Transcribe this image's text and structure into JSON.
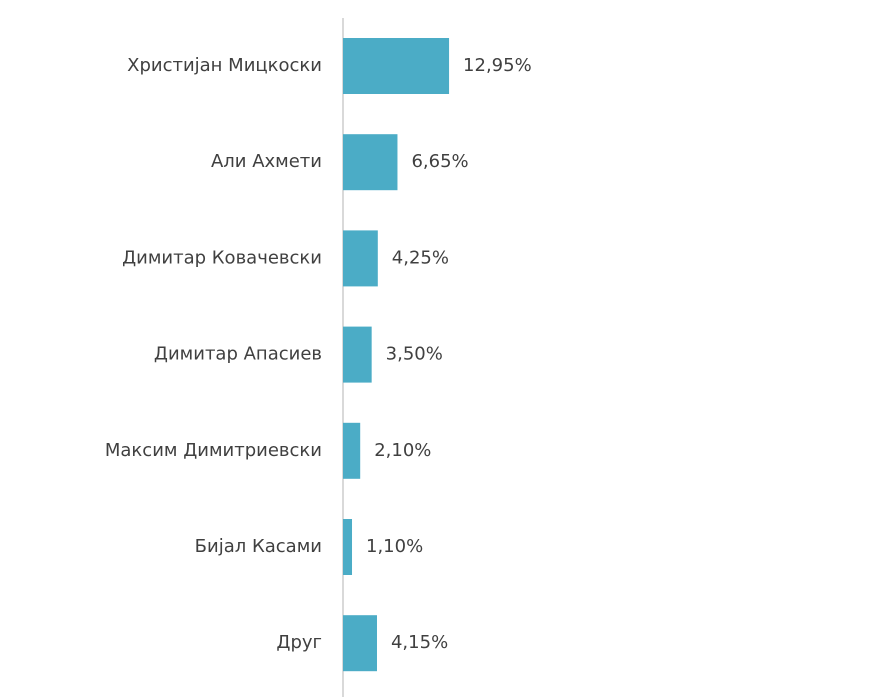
{
  "chart_data": {
    "type": "bar",
    "orientation": "horizontal",
    "categories": [
      "Христијан Мицкоски",
      "Али Ахмети",
      "Димитар Ковачевски",
      "Димитар Апасиев",
      "Максим Димитриевски",
      "Бијал Касами",
      "Друг"
    ],
    "values": [
      12.95,
      6.65,
      4.25,
      3.5,
      2.1,
      1.1,
      4.15
    ],
    "value_labels": [
      "12,95%",
      "6,65%",
      "4,25%",
      "3,50%",
      "2,10%",
      "1,10%",
      "4,15%"
    ],
    "color": "#4bacc6"
  }
}
